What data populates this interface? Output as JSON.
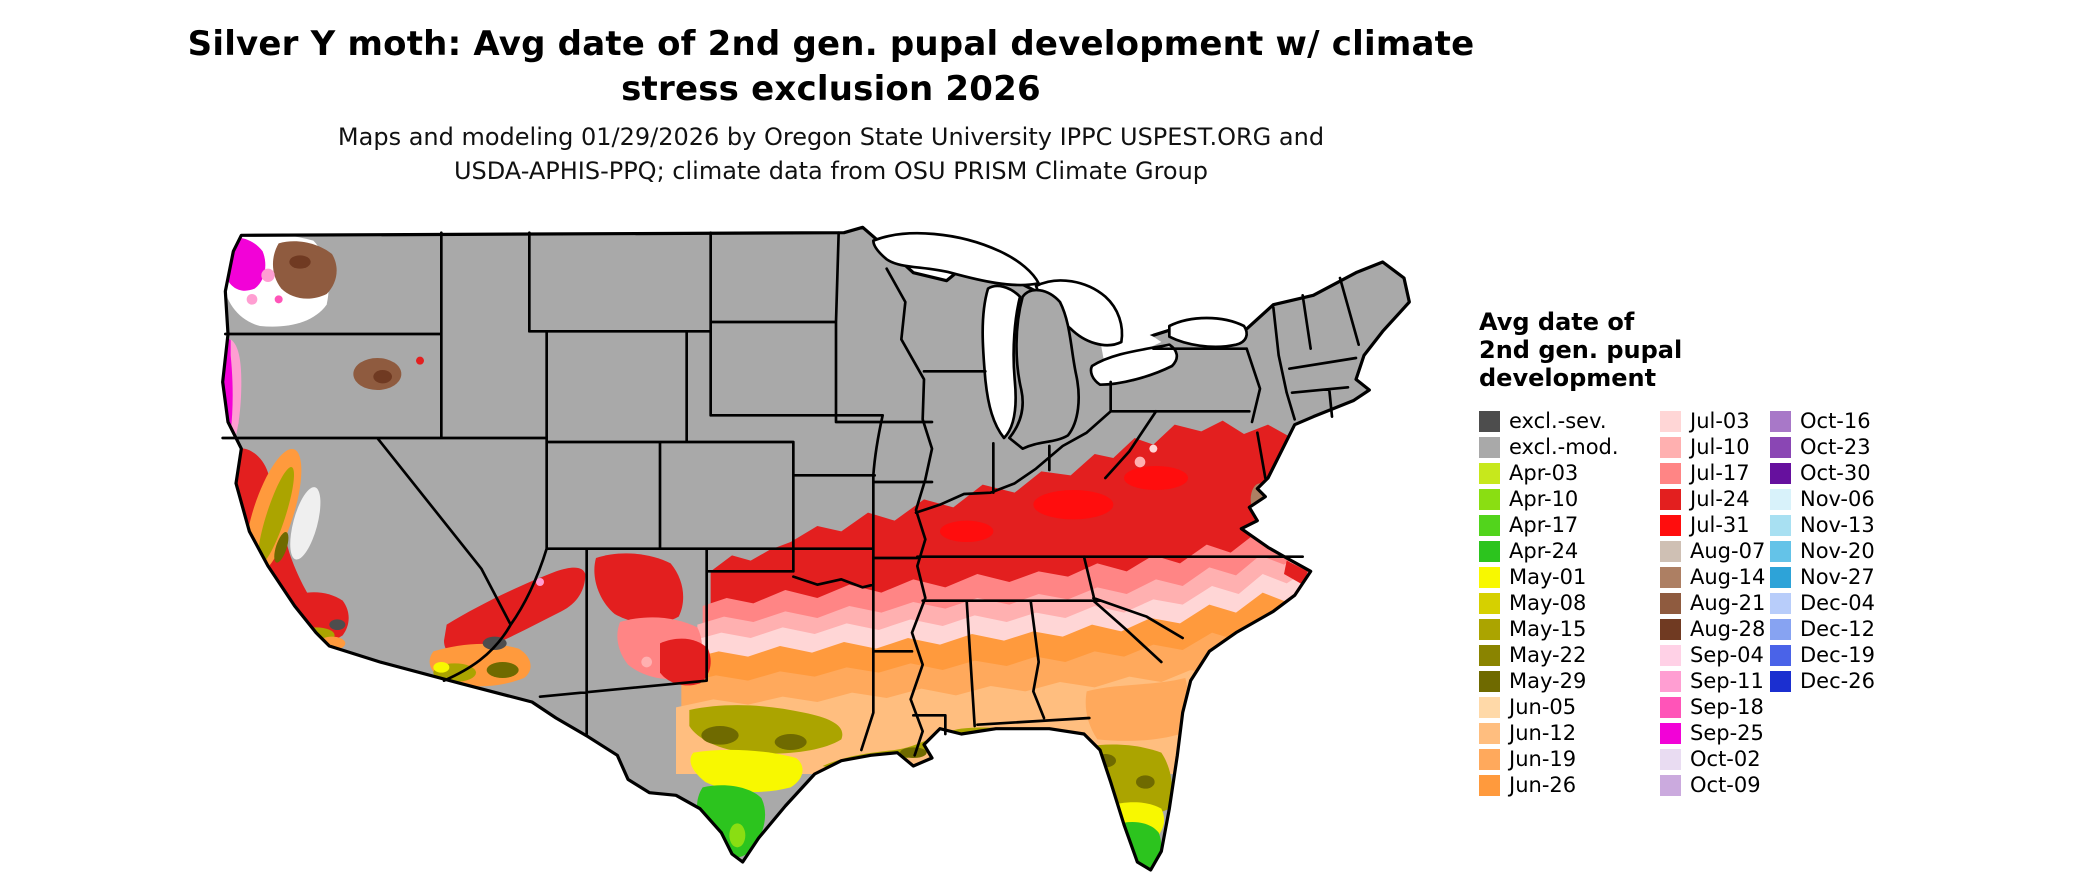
{
  "title": {
    "line1": "Silver Y moth: Avg date of 2nd gen. pupal development w/ climate",
    "line2": "stress exclusion 2026"
  },
  "subtitle": {
    "line1": "Maps and modeling 01/29/2026 by Oregon State University IPPC USPEST.ORG and",
    "line2": "USDA-APHIS-PPQ; climate data from OSU PRISM Climate Group"
  },
  "legend": {
    "title_lines": [
      "Avg date of",
      "2nd gen. pupal",
      "development"
    ],
    "columns": [
      [
        {
          "label": "excl.-sev.",
          "color": "#4d4d4d"
        },
        {
          "label": "excl.-mod.",
          "color": "#a9a9a9"
        },
        {
          "label": "Apr-03",
          "color": "#c7e81c"
        },
        {
          "label": "Apr-10",
          "color": "#8ade12"
        },
        {
          "label": "Apr-17",
          "color": "#52d41c"
        },
        {
          "label": "Apr-24",
          "color": "#2cc41e"
        },
        {
          "label": "May-01",
          "color": "#f8f800"
        },
        {
          "label": "May-08",
          "color": "#d6d000"
        },
        {
          "label": "May-15",
          "color": "#aba400"
        },
        {
          "label": "May-22",
          "color": "#8a8400"
        },
        {
          "label": "May-29",
          "color": "#6f6a00"
        },
        {
          "label": "Jun-05",
          "color": "#ffd9a8"
        },
        {
          "label": "Jun-12",
          "color": "#ffbe7f"
        },
        {
          "label": "Jun-19",
          "color": "#ffa95c"
        },
        {
          "label": "Jun-26",
          "color": "#ff9a3d"
        }
      ],
      [
        {
          "label": "Jul-03",
          "color": "#ffd6d6"
        },
        {
          "label": "Jul-10",
          "color": "#ffb0b0"
        },
        {
          "label": "Jul-17",
          "color": "#ff8585"
        },
        {
          "label": "Jul-24",
          "color": "#e31f1f"
        },
        {
          "label": "Jul-31",
          "color": "#ff0d0d"
        },
        {
          "label": "Aug-07",
          "color": "#cfc0b4"
        },
        {
          "label": "Aug-14",
          "color": "#ad7f63"
        },
        {
          "label": "Aug-21",
          "color": "#8f5b3f"
        },
        {
          "label": "Aug-28",
          "color": "#703a22"
        },
        {
          "label": "Sep-04",
          "color": "#ffd1e6"
        },
        {
          "label": "Sep-11",
          "color": "#ff9ed2"
        },
        {
          "label": "Sep-18",
          "color": "#ff54b8"
        },
        {
          "label": "Sep-25",
          "color": "#f202d7"
        },
        {
          "label": "Oct-02",
          "color": "#e9dcf2"
        },
        {
          "label": "Oct-09",
          "color": "#cbaade"
        }
      ],
      [
        {
          "label": "Oct-16",
          "color": "#a878c8"
        },
        {
          "label": "Oct-23",
          "color": "#8a46b4"
        },
        {
          "label": "Oct-30",
          "color": "#66109e"
        },
        {
          "label": "Nov-06",
          "color": "#d8f2fa"
        },
        {
          "label": "Nov-13",
          "color": "#a8e0f2"
        },
        {
          "label": "Nov-20",
          "color": "#64c3e8"
        },
        {
          "label": "Nov-27",
          "color": "#2da3d8"
        },
        {
          "label": "Dec-04",
          "color": "#b8cdfa"
        },
        {
          "label": "Dec-12",
          "color": "#87a3f2"
        },
        {
          "label": "Dec-19",
          "color": "#4a63e8"
        },
        {
          "label": "Dec-26",
          "color": "#1b2fd0"
        }
      ]
    ]
  }
}
